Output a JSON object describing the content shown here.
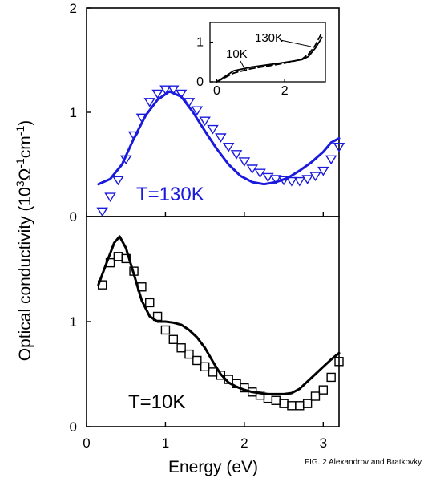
{
  "figure": {
    "ylabel": "Optical conductivity (10",
    "ylabel_sup1": "3",
    "ylabel_omega": "Ω",
    "ylabel_sup2": "-1",
    "ylabel_cm": "cm",
    "ylabel_sup3": "-1",
    "ylabel_close": ")",
    "xlabel": "Energy (eV)",
    "caption": "FIG. 2 Alexandrov and Bratkovky",
    "top_temperature": "T=130K",
    "bottom_temperature": "T=10K",
    "top_color": "#1a1adf",
    "bottom_color": "#000000"
  },
  "chart_data": [
    {
      "type": "line",
      "panel": "top",
      "annotation": "T=130K",
      "xlim": [
        0,
        3.2
      ],
      "ylim": [
        0,
        2
      ],
      "xticks": [
        "0",
        "1",
        "2",
        "3"
      ],
      "yticks": [
        "0",
        "1",
        "2"
      ],
      "series": [
        {
          "kind": "line",
          "color": "#1a1adf",
          "x": [
            0.15,
            0.3,
            0.45,
            0.6,
            0.75,
            0.9,
            1.05,
            1.2,
            1.35,
            1.5,
            1.65,
            1.8,
            1.95,
            2.1,
            2.25,
            2.4,
            2.55,
            2.7,
            2.85,
            3.0,
            3.1,
            3.2
          ],
          "y": [
            0.31,
            0.36,
            0.5,
            0.75,
            0.97,
            1.12,
            1.2,
            1.15,
            1.0,
            0.82,
            0.65,
            0.5,
            0.39,
            0.33,
            0.31,
            0.33,
            0.37,
            0.44,
            0.52,
            0.62,
            0.71,
            0.75
          ]
        },
        {
          "kind": "scatter",
          "marker": "triangle-down",
          "color": "#1a1adf",
          "x": [
            0.2,
            0.3,
            0.4,
            0.5,
            0.6,
            0.7,
            0.8,
            0.9,
            1.0,
            1.1,
            1.2,
            1.3,
            1.4,
            1.5,
            1.6,
            1.7,
            1.8,
            1.9,
            2.0,
            2.1,
            2.2,
            2.3,
            2.4,
            2.5,
            2.6,
            2.7,
            2.8,
            2.9,
            3.0,
            3.1,
            3.2
          ],
          "y": [
            0.05,
            0.19,
            0.35,
            0.55,
            0.78,
            0.95,
            1.1,
            1.18,
            1.22,
            1.22,
            1.18,
            1.1,
            1.02,
            0.92,
            0.84,
            0.76,
            0.67,
            0.6,
            0.53,
            0.46,
            0.42,
            0.38,
            0.36,
            0.35,
            0.34,
            0.34,
            0.36,
            0.39,
            0.44,
            0.55,
            0.67
          ]
        }
      ]
    },
    {
      "type": "line",
      "panel": "bottom",
      "annotation": "T=10K",
      "xlim": [
        0,
        3.2
      ],
      "ylim": [
        0,
        2
      ],
      "xticks": [
        "0",
        "1",
        "2",
        "3"
      ],
      "yticks": [
        "0",
        "1"
      ],
      "series": [
        {
          "kind": "line",
          "color": "#000000",
          "x": [
            0.15,
            0.25,
            0.35,
            0.42,
            0.5,
            0.6,
            0.7,
            0.8,
            0.9,
            1.0,
            1.1,
            1.2,
            1.3,
            1.4,
            1.5,
            1.6,
            1.7,
            1.8,
            1.9,
            2.0,
            2.1,
            2.2,
            2.3,
            2.4,
            2.5,
            2.6,
            2.7,
            2.8,
            2.9,
            3.0,
            3.1,
            3.2
          ],
          "y": [
            1.35,
            1.55,
            1.75,
            1.81,
            1.7,
            1.45,
            1.2,
            1.05,
            1.0,
            1.0,
            0.99,
            0.97,
            0.92,
            0.85,
            0.75,
            0.62,
            0.5,
            0.42,
            0.38,
            0.35,
            0.33,
            0.32,
            0.31,
            0.31,
            0.31,
            0.32,
            0.36,
            0.43,
            0.5,
            0.57,
            0.64,
            0.7
          ]
        },
        {
          "kind": "scatter",
          "marker": "square",
          "color": "#000000",
          "x": [
            0.2,
            0.3,
            0.4,
            0.5,
            0.6,
            0.7,
            0.8,
            0.9,
            1.0,
            1.1,
            1.2,
            1.3,
            1.4,
            1.5,
            1.6,
            1.7,
            1.8,
            1.9,
            2.0,
            2.1,
            2.2,
            2.3,
            2.4,
            2.5,
            2.6,
            2.7,
            2.8,
            2.9,
            3.0,
            3.1,
            3.2
          ],
          "y": [
            1.35,
            1.56,
            1.62,
            1.6,
            1.48,
            1.33,
            1.18,
            1.05,
            0.92,
            0.83,
            0.75,
            0.69,
            0.63,
            0.57,
            0.52,
            0.49,
            0.45,
            0.41,
            0.37,
            0.33,
            0.3,
            0.27,
            0.25,
            0.22,
            0.2,
            0.2,
            0.22,
            0.29,
            0.35,
            0.47,
            0.62
          ]
        }
      ]
    },
    {
      "type": "line",
      "panel": "inset",
      "xlim": [
        -0.2,
        3.2
      ],
      "ylim": [
        0,
        1.5
      ],
      "xticks": [
        "0",
        "2"
      ],
      "yticks": [
        "0",
        "1"
      ],
      "series": [
        {
          "name": "130K",
          "dash": "dashed",
          "color": "#000000",
          "x": [
            0.0,
            0.5,
            1.0,
            1.5,
            2.0,
            2.5,
            2.7,
            2.9,
            3.1
          ],
          "y": [
            0.0,
            0.22,
            0.33,
            0.4,
            0.47,
            0.57,
            0.7,
            0.92,
            1.25
          ]
        },
        {
          "name": "10K",
          "dash": "solid",
          "color": "#000000",
          "x": [
            0.0,
            0.5,
            1.0,
            1.5,
            2.0,
            2.5,
            2.7,
            2.9,
            3.1
          ],
          "y": [
            0.0,
            0.28,
            0.37,
            0.43,
            0.49,
            0.56,
            0.64,
            0.85,
            1.12
          ]
        }
      ]
    }
  ]
}
